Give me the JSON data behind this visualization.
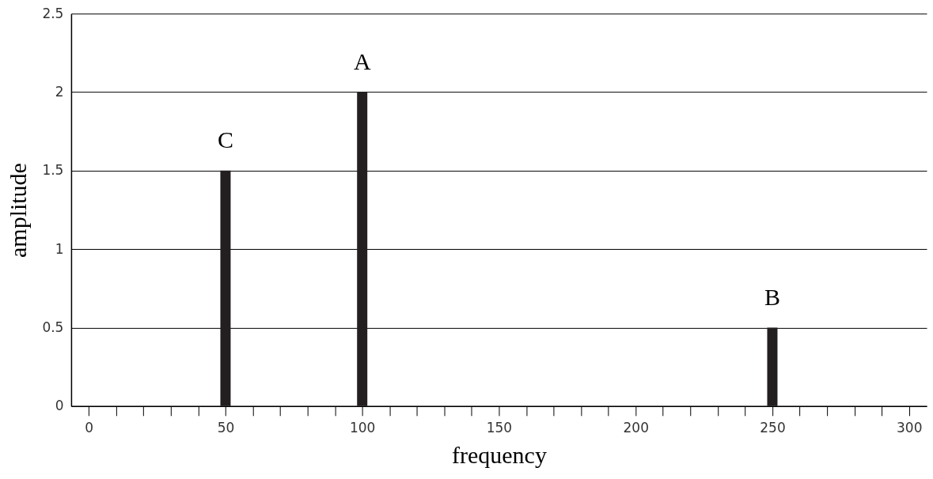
{
  "chart_data": {
    "type": "bar",
    "xlabel": "frequency",
    "ylabel": "amplitude",
    "x": [
      50,
      100,
      250
    ],
    "values": [
      1.5,
      2,
      0.5
    ],
    "color": "#231f20",
    "xlim": [
      -5,
      305
    ],
    "xticks": [
      0,
      {
        "value": 10,
        "label": null
      },
      {
        "value": 20,
        "label": null
      },
      {
        "value": 30,
        "label": null
      },
      {
        "value": 40,
        "label": null
      },
      50,
      {
        "value": 60,
        "label": null
      },
      {
        "value": 70,
        "label": null
      },
      {
        "value": 80,
        "label": null
      },
      {
        "value": 90,
        "label": null
      },
      100,
      {
        "value": 110,
        "label": null
      },
      {
        "value": 120,
        "label": null
      },
      {
        "value": 130,
        "label": null
      },
      {
        "value": 140,
        "label": null
      },
      150,
      {
        "value": 160,
        "label": null
      },
      {
        "value": 170,
        "label": null
      },
      {
        "value": 180,
        "label": null
      },
      {
        "value": 190,
        "label": null
      },
      200,
      {
        "value": 210,
        "label": null
      },
      {
        "value": 220,
        "label": null
      },
      {
        "value": 230,
        "label": null
      },
      {
        "value": 240,
        "label": null
      },
      250,
      {
        "value": 260,
        "label": null
      },
      {
        "value": 270,
        "label": null
      },
      {
        "value": 280,
        "label": null
      },
      {
        "value": 290,
        "label": null
      },
      300
    ],
    "ylim": [
      0,
      2.5
    ],
    "yticks": [
      0,
      0.5,
      1,
      1.5,
      2,
      2.5
    ],
    "grid": "y",
    "annotations": [
      {
        "text": "A",
        "x": 100,
        "y": 2
      },
      {
        "text": "B",
        "x": 250,
        "y": 0.5
      },
      {
        "text": "C",
        "x": 50,
        "y": 1.5
      }
    ]
  }
}
